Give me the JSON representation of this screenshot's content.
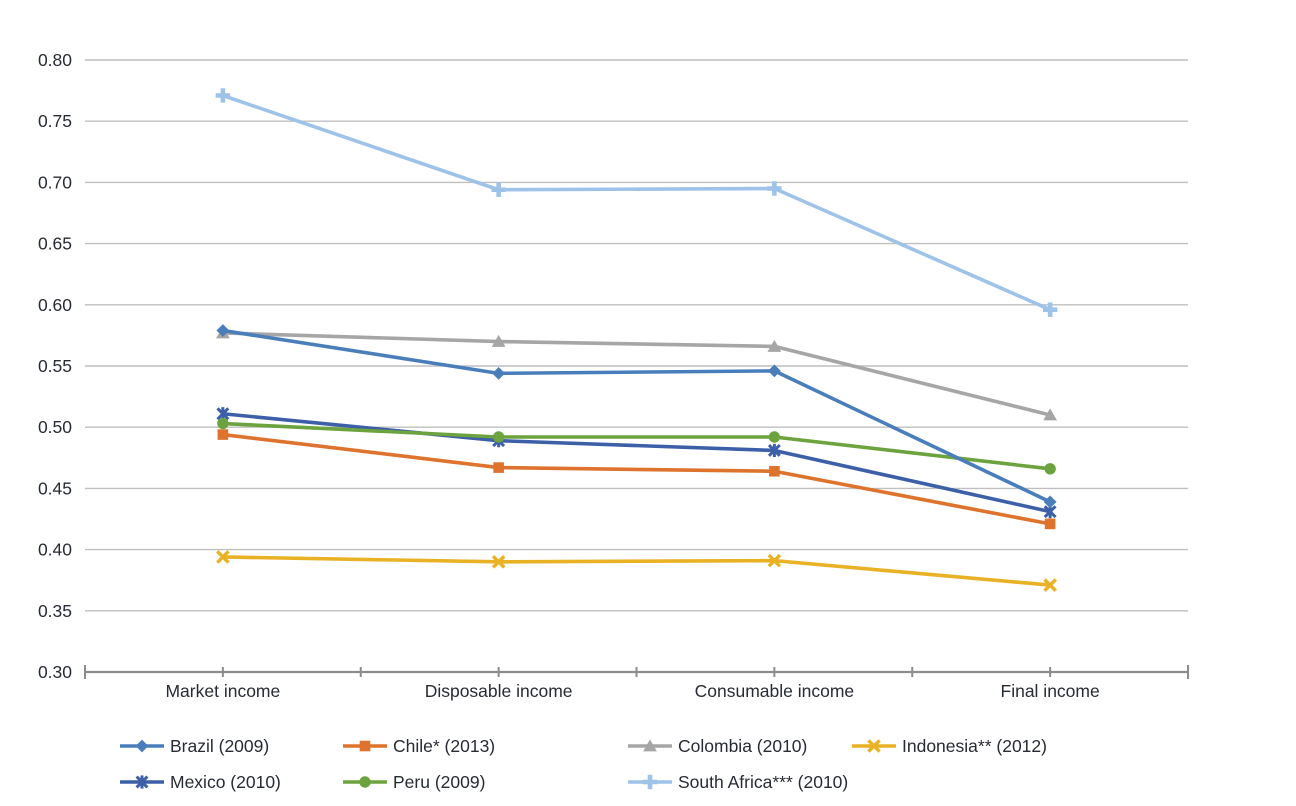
{
  "chart_data": {
    "type": "line",
    "title": "",
    "xlabel": "",
    "ylabel": "",
    "categories": [
      "Market income",
      "Disposable income",
      "Consumable income",
      "Final income"
    ],
    "series": [
      {
        "name": "Brazil (2009)",
        "color": "#4a7ebb",
        "marker": "diamond",
        "values": [
          0.579,
          0.544,
          0.546,
          0.439
        ]
      },
      {
        "name": "Chile* (2013)",
        "color": "#dd732d",
        "marker": "square",
        "values": [
          0.494,
          0.467,
          0.464,
          0.421
        ]
      },
      {
        "name": "Colombia (2010)",
        "color": "#a6a6a6",
        "marker": "triangle",
        "values": [
          0.577,
          0.57,
          0.566,
          0.51
        ]
      },
      {
        "name": "Indonesia** (2012)",
        "color": "#e9b225",
        "marker": "x",
        "values": [
          0.394,
          0.39,
          0.391,
          0.371
        ]
      },
      {
        "name": "Mexico (2010)",
        "color": "#3d5fa7",
        "marker": "star",
        "values": [
          0.511,
          0.489,
          0.481,
          0.431
        ]
      },
      {
        "name": "Peru (2009)",
        "color": "#6ca33e",
        "marker": "circle",
        "values": [
          0.503,
          0.492,
          0.492,
          0.466
        ]
      },
      {
        "name": "South Africa*** (2010)",
        "color": "#9fc3e8",
        "marker": "plus",
        "values": [
          0.771,
          0.694,
          0.695,
          0.596
        ]
      }
    ],
    "ylim": [
      0.3,
      0.8
    ],
    "ytick_step": 0.05,
    "ytick_labels": [
      "0.30",
      "0.35",
      "0.40",
      "0.45",
      "0.50",
      "0.55",
      "0.60",
      "0.65",
      "0.70",
      "0.75",
      "0.80"
    ],
    "grid": true,
    "gridline_color": "#bfbfbf",
    "axis_color": "#8c8c8c",
    "text_color": "#272b33",
    "legend_position": "bottom"
  }
}
